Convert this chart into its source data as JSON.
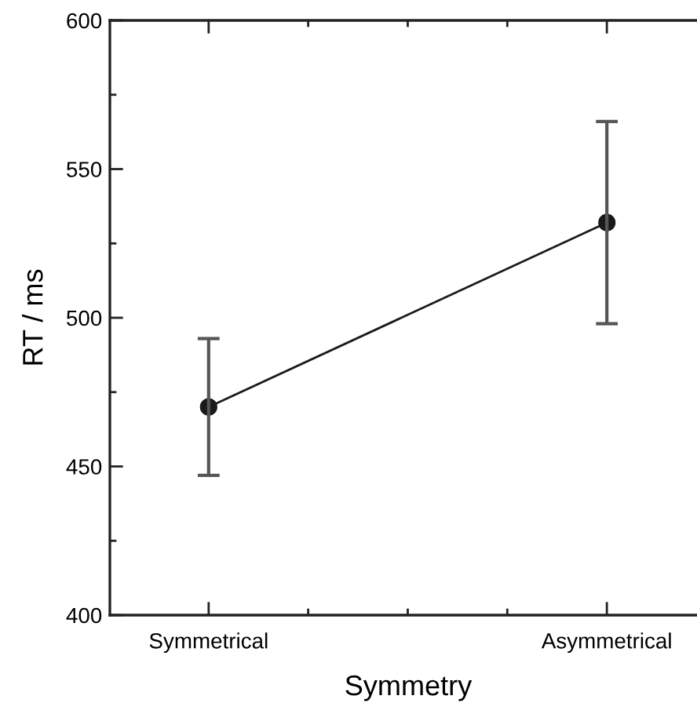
{
  "chart_data": {
    "type": "line",
    "xlabel": "Symmetry",
    "ylabel": "RT / ms",
    "categories": [
      "Symmetrical",
      "Asymmetrical"
    ],
    "series": [
      {
        "color": "#1a1a1a",
        "values": [
          470,
          532
        ],
        "errors": [
          23,
          34
        ]
      }
    ],
    "ylim": [
      400,
      600
    ],
    "yticks": [
      400,
      450,
      500,
      550,
      600
    ],
    "marker": "circle",
    "line_style": "solid",
    "grid": false,
    "legend": false
  }
}
